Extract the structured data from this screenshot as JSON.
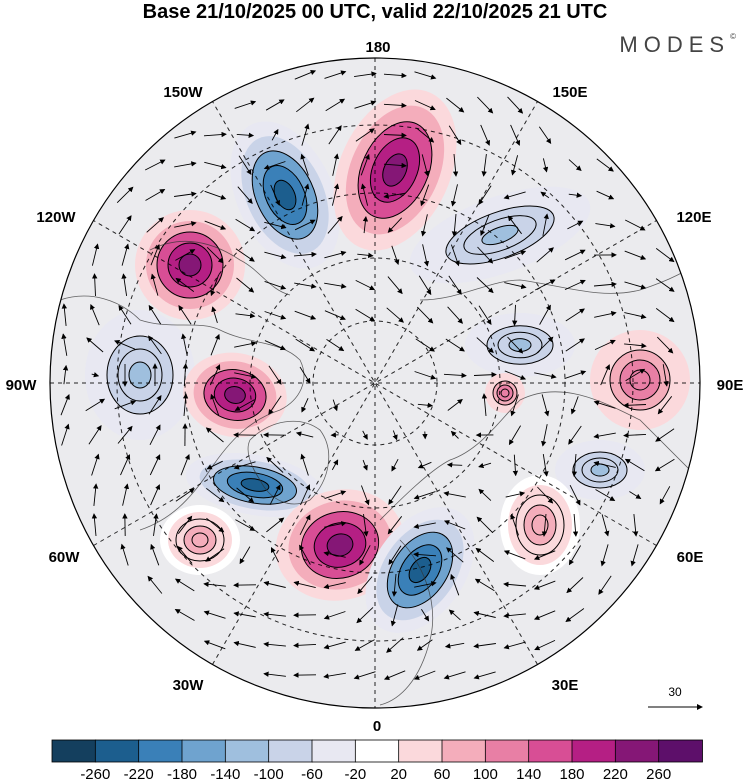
{
  "title": "Base 21/10/2025 00 UTC, valid 22/10/2025 21 UTC",
  "brand": "MODES",
  "brand_mark": "©",
  "map": {
    "projection": "north polar stereographic",
    "longitude_labels": {
      "lon_180": "180",
      "lon_150w": "150W",
      "lon_150e": "150E",
      "lon_120w": "120W",
      "lon_120e": "120E",
      "lon_90w": "90W",
      "lon_90e": "90E",
      "lon_60w": "60W",
      "lon_60e": "60E",
      "lon_30w": "30W",
      "lon_30e": "30E",
      "lon_0": "0"
    },
    "vector_reference": "30",
    "anomaly_features": [
      {
        "sign": "negative",
        "lon": "150W",
        "strength": -240
      },
      {
        "sign": "positive",
        "lon": "165E",
        "strength": 250
      },
      {
        "sign": "positive",
        "lon": "125W",
        "strength": 250
      },
      {
        "sign": "negative",
        "lon": "120E",
        "strength": -120
      },
      {
        "sign": "negative",
        "lon": "100W",
        "strength": -100
      },
      {
        "sign": "positive",
        "lon": "80W",
        "strength": 240
      },
      {
        "sign": "negative",
        "lon": "100E",
        "strength": -120
      },
      {
        "sign": "positive",
        "lon": "90E",
        "strength": 130
      },
      {
        "sign": "positive",
        "lon": "90E",
        "strength": 140
      },
      {
        "sign": "negative",
        "lon": "70W",
        "strength": -240
      },
      {
        "sign": "negative",
        "lon": "75E",
        "strength": -110
      },
      {
        "sign": "positive",
        "lon": "60E",
        "strength": 100
      },
      {
        "sign": "positive",
        "lon": "50W",
        "strength": 90
      },
      {
        "sign": "positive",
        "lon": "20W",
        "strength": 250
      },
      {
        "sign": "negative",
        "lon": "20E",
        "strength": -240
      }
    ]
  },
  "colorbar": {
    "labels": [
      "-260",
      "-220",
      "-180",
      "-140",
      "-100",
      "-60",
      "-20",
      "20",
      "60",
      "100",
      "140",
      "180",
      "220",
      "260"
    ],
    "colors": [
      "#143f5e",
      "#1c5e8e",
      "#3a80b8",
      "#6fa3cf",
      "#9fbfde",
      "#c9d3e8",
      "#e8e8f2",
      "#ffffff",
      "#fbd9dc",
      "#f4adbb",
      "#e87fa5",
      "#d84e95",
      "#b51f84",
      "#851776",
      "#5d0f6a"
    ]
  }
}
